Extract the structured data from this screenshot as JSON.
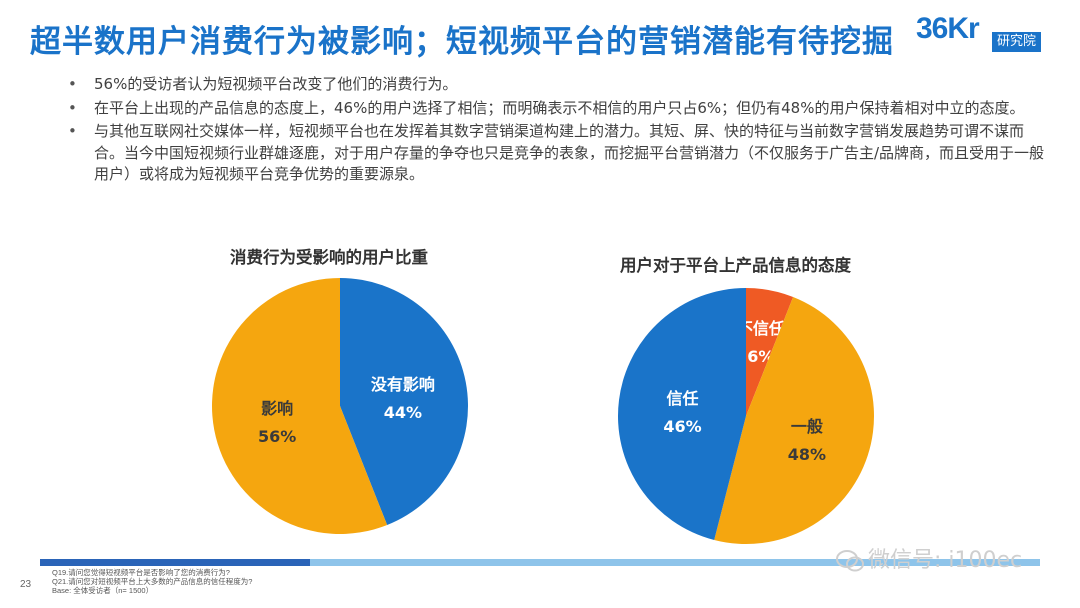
{
  "header": {
    "title": "超半数用户消费行为被影响；短视频平台的营销潜能有待挖掘"
  },
  "logo": {
    "mark": "36Kr",
    "sub": "研究院"
  },
  "bullets": [
    "56%的受访者认为短视频平台改变了他们的消费行为。",
    "在平台上出现的产品信息的态度上，46%的用户选择了相信；而明确表示不相信的用户只占6%；但仍有48%的用户保持着相对中立的态度。",
    "与其他互联网社交媒体一样，短视频平台也在发挥着其数字营销渠道构建上的潜力。其短、屏、快的特征与当前数字营销发展趋势可谓不谋而合。当今中国短视频行业群雄逐鹿，对于用户存量的争夺也只是竞争的表象，而挖掘平台营销潜力（不仅服务于广告主/品牌商，而且受用于一般用户）或将成为短视频平台竞争优势的重要源泉。"
  ],
  "chart_data": [
    {
      "type": "pie",
      "title": "消费行为受影响的用户比重",
      "slices": [
        {
          "label": "没有影响",
          "value": 44,
          "display": "44%",
          "color": "#1a74c9"
        },
        {
          "label": "影响",
          "value": 56,
          "display": "56%",
          "color": "#f5a60f"
        }
      ]
    },
    {
      "type": "pie",
      "title": "用户对于平台上产品信息的态度",
      "slices": [
        {
          "label": "不信任",
          "value": 6,
          "display": "6%",
          "color": "#ef5a24"
        },
        {
          "label": "一般",
          "value": 48,
          "display": "48%",
          "color": "#f5a60f"
        },
        {
          "label": "信任",
          "value": 46,
          "display": "46%",
          "color": "#1a74c9"
        }
      ]
    }
  ],
  "footer": {
    "notes": [
      "Q19.请问您觉得短视频平台是否影响了您的消费行为?",
      "Q21.请问您对短视频平台上大多数的产品信息的信任程度为?",
      "Base: 全体受访者（n= 1500）"
    ],
    "page_number": "23",
    "watermark": "微信号: i100ec"
  }
}
